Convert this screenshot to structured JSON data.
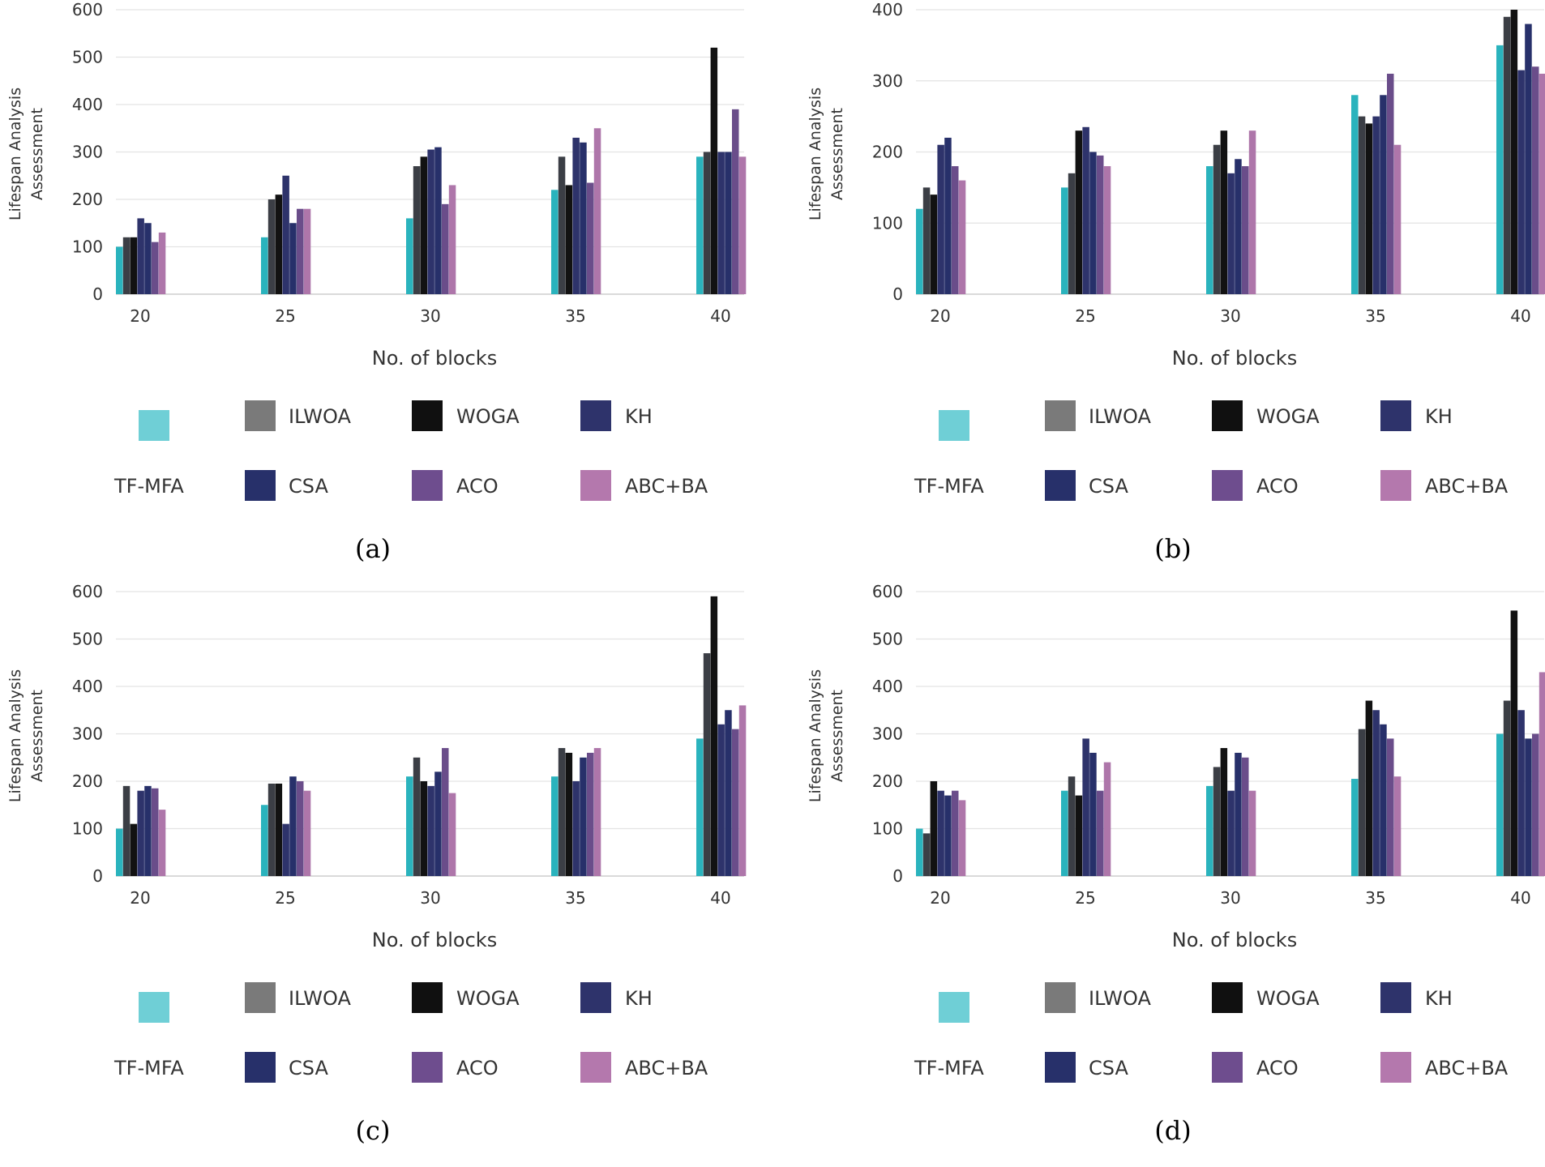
{
  "series_meta": [
    {
      "name": "TF-MFA",
      "color": "#2ab3bd",
      "legend_color": "#6fcfd6"
    },
    {
      "name": "ILWOA",
      "color": "#3b3e45",
      "legend_color": "#7a7a7a"
    },
    {
      "name": "WOGA",
      "color": "#121212",
      "legend_color": "#101010"
    },
    {
      "name": "KH",
      "color": "#2e336b",
      "legend_color": "#2e336b"
    },
    {
      "name": "CSA",
      "color": "#27306a",
      "legend_color": "#27306a"
    },
    {
      "name": "ACO",
      "color": "#6a4d8a",
      "legend_color": "#6e4d8e"
    },
    {
      "name": "ABC+BA",
      "color": "#ae76aa",
      "legend_color": "#b478ad"
    }
  ],
  "chart_data": [
    {
      "type": "bar",
      "subtitle": "(a)",
      "xlabel": "No. of blocks",
      "ylabel_lines": [
        "Lifespan Analysis",
        "Assessment"
      ],
      "categories": [
        "20",
        "25",
        "30",
        "35",
        "40"
      ],
      "ylim": [
        0,
        600
      ],
      "yticks": [
        0,
        100,
        200,
        300,
        400,
        500,
        600
      ],
      "series": [
        {
          "name": "TF-MFA",
          "values": [
            100,
            120,
            160,
            220,
            290
          ]
        },
        {
          "name": "ILWOA",
          "values": [
            120,
            200,
            270,
            290,
            300
          ]
        },
        {
          "name": "WOGA",
          "values": [
            120,
            210,
            290,
            230,
            520
          ]
        },
        {
          "name": "KH",
          "values": [
            160,
            250,
            305,
            330,
            300
          ]
        },
        {
          "name": "CSA",
          "values": [
            150,
            150,
            310,
            320,
            300
          ]
        },
        {
          "name": "ACO",
          "values": [
            110,
            180,
            190,
            235,
            390
          ]
        },
        {
          "name": "ABC+BA",
          "values": [
            130,
            180,
            230,
            350,
            290
          ]
        }
      ]
    },
    {
      "type": "bar",
      "subtitle": "(b)",
      "xlabel": "No. of blocks",
      "ylabel_lines": [
        "Lifespan Analysis",
        "Assessment"
      ],
      "categories": [
        "20",
        "25",
        "30",
        "35",
        "40"
      ],
      "ylim": [
        0,
        400
      ],
      "yticks": [
        0,
        100,
        200,
        300,
        400
      ],
      "series": [
        {
          "name": "TF-MFA",
          "values": [
            120,
            150,
            180,
            280,
            350
          ]
        },
        {
          "name": "ILWOA",
          "values": [
            150,
            170,
            210,
            250,
            390
          ]
        },
        {
          "name": "WOGA",
          "values": [
            140,
            230,
            230,
            240,
            400
          ]
        },
        {
          "name": "KH",
          "values": [
            210,
            235,
            170,
            250,
            315
          ]
        },
        {
          "name": "CSA",
          "values": [
            220,
            200,
            190,
            280,
            380
          ]
        },
        {
          "name": "ACO",
          "values": [
            180,
            195,
            180,
            310,
            320
          ]
        },
        {
          "name": "ABC+BA",
          "values": [
            160,
            180,
            230,
            210,
            310
          ]
        }
      ]
    },
    {
      "type": "bar",
      "subtitle": "(c)",
      "xlabel": "No. of blocks",
      "ylabel_lines": [
        "Lifespan Analysis",
        "Assessment"
      ],
      "categories": [
        "20",
        "25",
        "30",
        "35",
        "40"
      ],
      "ylim": [
        0,
        600
      ],
      "yticks": [
        0,
        100,
        200,
        300,
        400,
        500,
        600
      ],
      "series": [
        {
          "name": "TF-MFA",
          "values": [
            100,
            150,
            210,
            210,
            290
          ]
        },
        {
          "name": "ILWOA",
          "values": [
            190,
            195,
            250,
            270,
            470
          ]
        },
        {
          "name": "WOGA",
          "values": [
            110,
            195,
            200,
            260,
            590
          ]
        },
        {
          "name": "KH",
          "values": [
            180,
            110,
            190,
            200,
            320
          ]
        },
        {
          "name": "CSA",
          "values": [
            190,
            210,
            220,
            250,
            350
          ]
        },
        {
          "name": "ACO",
          "values": [
            185,
            200,
            270,
            260,
            310
          ]
        },
        {
          "name": "ABC+BA",
          "values": [
            140,
            180,
            175,
            270,
            360
          ]
        }
      ]
    },
    {
      "type": "bar",
      "subtitle": "(d)",
      "xlabel": "No. of blocks",
      "ylabel_lines": [
        "Lifespan Analysis",
        "Assessment"
      ],
      "categories": [
        "20",
        "25",
        "30",
        "35",
        "40"
      ],
      "ylim": [
        0,
        600
      ],
      "yticks": [
        0,
        100,
        200,
        300,
        400,
        500,
        600
      ],
      "series": [
        {
          "name": "TF-MFA",
          "values": [
            100,
            180,
            190,
            205,
            300
          ]
        },
        {
          "name": "ILWOA",
          "values": [
            90,
            210,
            230,
            310,
            370
          ]
        },
        {
          "name": "WOGA",
          "values": [
            200,
            170,
            270,
            370,
            560
          ]
        },
        {
          "name": "KH",
          "values": [
            180,
            290,
            180,
            350,
            350
          ]
        },
        {
          "name": "CSA",
          "values": [
            170,
            260,
            260,
            320,
            290
          ]
        },
        {
          "name": "ACO",
          "values": [
            180,
            180,
            250,
            290,
            300
          ]
        },
        {
          "name": "ABC+BA",
          "values": [
            160,
            240,
            180,
            210,
            430
          ]
        }
      ]
    }
  ]
}
